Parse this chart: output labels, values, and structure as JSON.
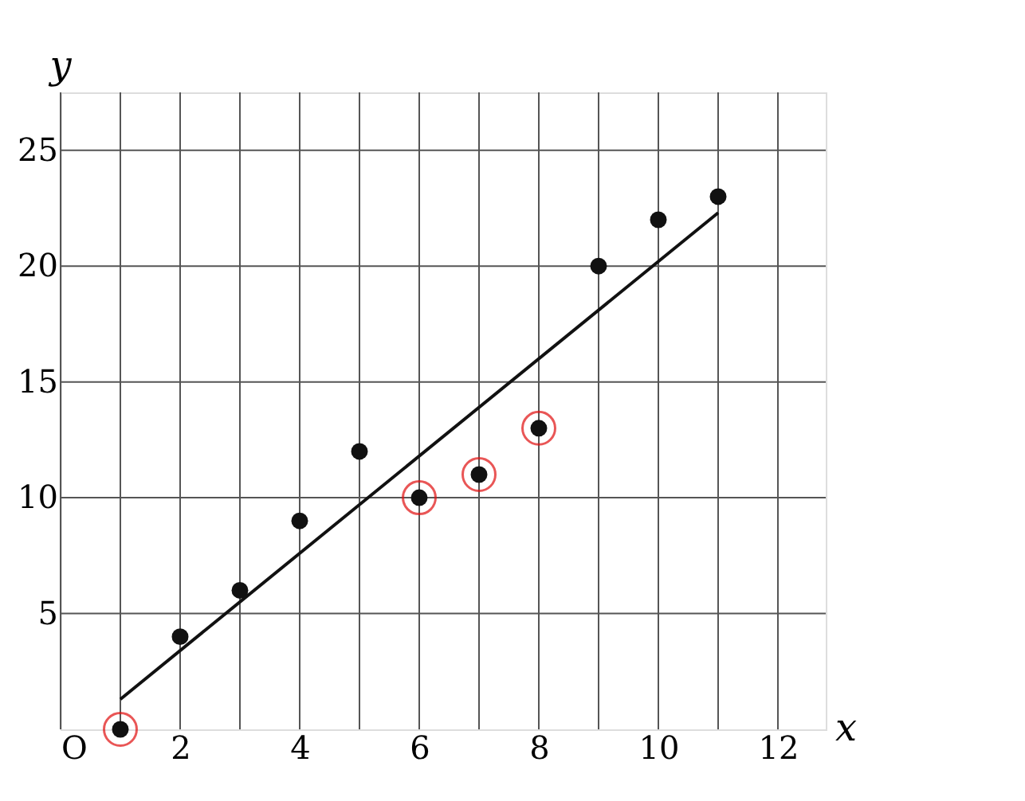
{
  "chart_data": {
    "type": "scatter",
    "xlabel": "x",
    "ylabel": "y",
    "xlim": [
      0,
      12.8
    ],
    "ylim": [
      0,
      27.5
    ],
    "xticks": [
      {
        "value": 0,
        "label": "O"
      },
      {
        "value": 1,
        "label": null
      },
      2,
      {
        "value": 3,
        "label": null
      },
      4,
      {
        "value": 5,
        "label": null
      },
      6,
      {
        "value": 7,
        "label": null
      },
      8,
      {
        "value": 9,
        "label": null
      },
      10,
      {
        "value": 11,
        "label": null
      },
      12
    ],
    "yticks": [
      5,
      10,
      15,
      20,
      25
    ],
    "grid": true,
    "marker": "circle",
    "series": [
      {
        "color": "#111111",
        "x": [
          1,
          2,
          3,
          4,
          5,
          6,
          7,
          8,
          9,
          10,
          11
        ],
        "values": [
          0,
          4,
          6,
          9,
          12,
          10,
          11,
          13,
          20,
          22,
          23
        ]
      },
      {
        "color": "#e01010",
        "x": [
          1,
          6,
          7,
          8
        ],
        "values": [
          0,
          10,
          11,
          13
        ]
      },
      {
        "type": "line",
        "marker": "none",
        "line_style": "solid",
        "color": "#111111",
        "x": [
          1,
          11
        ],
        "values": [
          1.3,
          22.3
        ]
      }
    ]
  }
}
